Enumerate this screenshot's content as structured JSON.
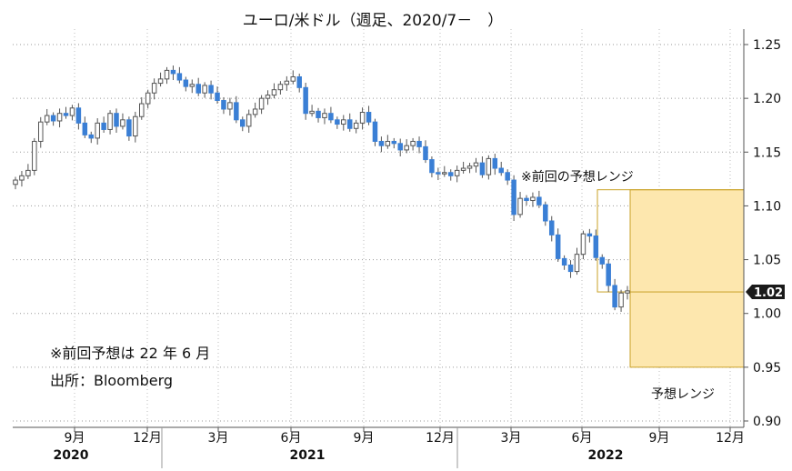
{
  "title": "ユーロ/米ドル（週足、2020/7－　）",
  "notes": {
    "line1": "※前回予想は 22 年 6 月",
    "line2": "出所：Bloomberg"
  },
  "range_labels": {
    "previous": "※前回の予想レンジ",
    "current": "予想レンジ"
  },
  "colors": {
    "up": "#ffffff",
    "down": "#3a7fd5",
    "wick": "#555555",
    "range_fill": "#fde7ae",
    "range_border": "#c9a227",
    "last_price_bg": "#1a1a1a"
  },
  "chart_data": {
    "type": "candlestick",
    "title": "ユーロ/米ドル（週足、2020/7－　）",
    "y_ticks": [
      "1.25",
      "1.20",
      "1.15",
      "1.10",
      "1.05",
      "1.00",
      "0.95",
      "0.90"
    ],
    "ylim": [
      0.9,
      1.25
    ],
    "x_tick_labels": [
      "9月",
      "12月",
      "3月",
      "6月",
      "9月",
      "12月",
      "3月",
      "6月",
      "9月",
      "12月"
    ],
    "year_labels": [
      "2020",
      "2021",
      "2022"
    ],
    "last_price": "1.02",
    "grid": true,
    "period": {
      "start": "2020-07",
      "end": "2022-07"
    },
    "previous_forecast_range": {
      "low": 1.02,
      "high": 1.115
    },
    "forecast_range": {
      "low": 0.95,
      "high": 1.115
    },
    "series_close": [
      1.124,
      1.128,
      1.133,
      1.16,
      1.178,
      1.184,
      1.179,
      1.186,
      1.184,
      1.191,
      1.177,
      1.166,
      1.163,
      1.177,
      1.171,
      1.186,
      1.174,
      1.18,
      1.165,
      1.183,
      1.195,
      1.205,
      1.214,
      1.218,
      1.226,
      1.223,
      1.217,
      1.211,
      1.213,
      1.205,
      1.212,
      1.205,
      1.198,
      1.19,
      1.196,
      1.18,
      1.174,
      1.185,
      1.19,
      1.2,
      1.203,
      1.208,
      1.213,
      1.216,
      1.22,
      1.21,
      1.186,
      1.188,
      1.182,
      1.186,
      1.18,
      1.176,
      1.18,
      1.172,
      1.177,
      1.187,
      1.178,
      1.16,
      1.156,
      1.16,
      1.158,
      1.152,
      1.156,
      1.16,
      1.155,
      1.143,
      1.131,
      1.13,
      1.131,
      1.128,
      1.133,
      1.135,
      1.137,
      1.14,
      1.129,
      1.144,
      1.135,
      1.131,
      1.124,
      1.092,
      1.107,
      1.105,
      1.108,
      1.101,
      1.086,
      1.073,
      1.051,
      1.045,
      1.039,
      1.055,
      1.074,
      1.072,
      1.052,
      1.046,
      1.026,
      1.006,
      1.019,
      1.021
    ]
  }
}
